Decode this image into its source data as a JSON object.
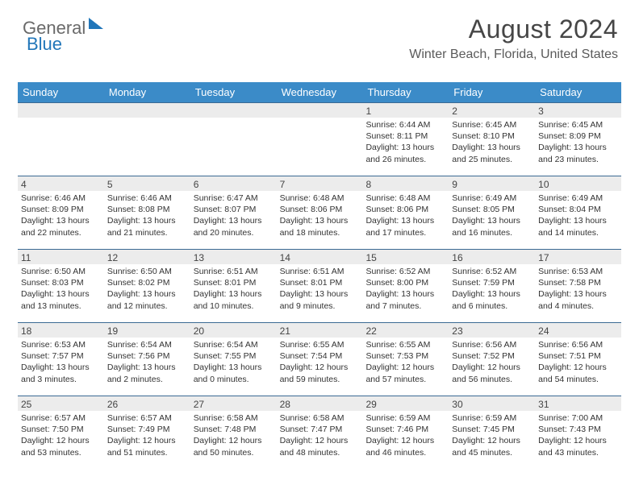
{
  "logo": {
    "part1": "General",
    "part2": "Blue"
  },
  "header": {
    "title": "August 2024",
    "location": "Winter Beach, Florida, United States"
  },
  "calendar": {
    "header_bg": "#3b8bc8",
    "header_fg": "#ffffff",
    "row_border": "#3b6a93",
    "daynum_bg": "#ececec",
    "text_color": "#333333",
    "font_size_body": 10.5,
    "font_size_daynum": 12,
    "days": [
      "Sunday",
      "Monday",
      "Tuesday",
      "Wednesday",
      "Thursday",
      "Friday",
      "Saturday"
    ],
    "weeks": [
      [
        {
          "empty": true
        },
        {
          "empty": true
        },
        {
          "empty": true
        },
        {
          "empty": true
        },
        {
          "n": "1",
          "sr": "Sunrise: 6:44 AM",
          "ss": "Sunset: 8:11 PM",
          "dl1": "Daylight: 13 hours",
          "dl2": "and 26 minutes."
        },
        {
          "n": "2",
          "sr": "Sunrise: 6:45 AM",
          "ss": "Sunset: 8:10 PM",
          "dl1": "Daylight: 13 hours",
          "dl2": "and 25 minutes."
        },
        {
          "n": "3",
          "sr": "Sunrise: 6:45 AM",
          "ss": "Sunset: 8:09 PM",
          "dl1": "Daylight: 13 hours",
          "dl2": "and 23 minutes."
        }
      ],
      [
        {
          "n": "4",
          "sr": "Sunrise: 6:46 AM",
          "ss": "Sunset: 8:09 PM",
          "dl1": "Daylight: 13 hours",
          "dl2": "and 22 minutes."
        },
        {
          "n": "5",
          "sr": "Sunrise: 6:46 AM",
          "ss": "Sunset: 8:08 PM",
          "dl1": "Daylight: 13 hours",
          "dl2": "and 21 minutes."
        },
        {
          "n": "6",
          "sr": "Sunrise: 6:47 AM",
          "ss": "Sunset: 8:07 PM",
          "dl1": "Daylight: 13 hours",
          "dl2": "and 20 minutes."
        },
        {
          "n": "7",
          "sr": "Sunrise: 6:48 AM",
          "ss": "Sunset: 8:06 PM",
          "dl1": "Daylight: 13 hours",
          "dl2": "and 18 minutes."
        },
        {
          "n": "8",
          "sr": "Sunrise: 6:48 AM",
          "ss": "Sunset: 8:06 PM",
          "dl1": "Daylight: 13 hours",
          "dl2": "and 17 minutes."
        },
        {
          "n": "9",
          "sr": "Sunrise: 6:49 AM",
          "ss": "Sunset: 8:05 PM",
          "dl1": "Daylight: 13 hours",
          "dl2": "and 16 minutes."
        },
        {
          "n": "10",
          "sr": "Sunrise: 6:49 AM",
          "ss": "Sunset: 8:04 PM",
          "dl1": "Daylight: 13 hours",
          "dl2": "and 14 minutes."
        }
      ],
      [
        {
          "n": "11",
          "sr": "Sunrise: 6:50 AM",
          "ss": "Sunset: 8:03 PM",
          "dl1": "Daylight: 13 hours",
          "dl2": "and 13 minutes."
        },
        {
          "n": "12",
          "sr": "Sunrise: 6:50 AM",
          "ss": "Sunset: 8:02 PM",
          "dl1": "Daylight: 13 hours",
          "dl2": "and 12 minutes."
        },
        {
          "n": "13",
          "sr": "Sunrise: 6:51 AM",
          "ss": "Sunset: 8:01 PM",
          "dl1": "Daylight: 13 hours",
          "dl2": "and 10 minutes."
        },
        {
          "n": "14",
          "sr": "Sunrise: 6:51 AM",
          "ss": "Sunset: 8:01 PM",
          "dl1": "Daylight: 13 hours",
          "dl2": "and 9 minutes."
        },
        {
          "n": "15",
          "sr": "Sunrise: 6:52 AM",
          "ss": "Sunset: 8:00 PM",
          "dl1": "Daylight: 13 hours",
          "dl2": "and 7 minutes."
        },
        {
          "n": "16",
          "sr": "Sunrise: 6:52 AM",
          "ss": "Sunset: 7:59 PM",
          "dl1": "Daylight: 13 hours",
          "dl2": "and 6 minutes."
        },
        {
          "n": "17",
          "sr": "Sunrise: 6:53 AM",
          "ss": "Sunset: 7:58 PM",
          "dl1": "Daylight: 13 hours",
          "dl2": "and 4 minutes."
        }
      ],
      [
        {
          "n": "18",
          "sr": "Sunrise: 6:53 AM",
          "ss": "Sunset: 7:57 PM",
          "dl1": "Daylight: 13 hours",
          "dl2": "and 3 minutes."
        },
        {
          "n": "19",
          "sr": "Sunrise: 6:54 AM",
          "ss": "Sunset: 7:56 PM",
          "dl1": "Daylight: 13 hours",
          "dl2": "and 2 minutes."
        },
        {
          "n": "20",
          "sr": "Sunrise: 6:54 AM",
          "ss": "Sunset: 7:55 PM",
          "dl1": "Daylight: 13 hours",
          "dl2": "and 0 minutes."
        },
        {
          "n": "21",
          "sr": "Sunrise: 6:55 AM",
          "ss": "Sunset: 7:54 PM",
          "dl1": "Daylight: 12 hours",
          "dl2": "and 59 minutes."
        },
        {
          "n": "22",
          "sr": "Sunrise: 6:55 AM",
          "ss": "Sunset: 7:53 PM",
          "dl1": "Daylight: 12 hours",
          "dl2": "and 57 minutes."
        },
        {
          "n": "23",
          "sr": "Sunrise: 6:56 AM",
          "ss": "Sunset: 7:52 PM",
          "dl1": "Daylight: 12 hours",
          "dl2": "and 56 minutes."
        },
        {
          "n": "24",
          "sr": "Sunrise: 6:56 AM",
          "ss": "Sunset: 7:51 PM",
          "dl1": "Daylight: 12 hours",
          "dl2": "and 54 minutes."
        }
      ],
      [
        {
          "n": "25",
          "sr": "Sunrise: 6:57 AM",
          "ss": "Sunset: 7:50 PM",
          "dl1": "Daylight: 12 hours",
          "dl2": "and 53 minutes."
        },
        {
          "n": "26",
          "sr": "Sunrise: 6:57 AM",
          "ss": "Sunset: 7:49 PM",
          "dl1": "Daylight: 12 hours",
          "dl2": "and 51 minutes."
        },
        {
          "n": "27",
          "sr": "Sunrise: 6:58 AM",
          "ss": "Sunset: 7:48 PM",
          "dl1": "Daylight: 12 hours",
          "dl2": "and 50 minutes."
        },
        {
          "n": "28",
          "sr": "Sunrise: 6:58 AM",
          "ss": "Sunset: 7:47 PM",
          "dl1": "Daylight: 12 hours",
          "dl2": "and 48 minutes."
        },
        {
          "n": "29",
          "sr": "Sunrise: 6:59 AM",
          "ss": "Sunset: 7:46 PM",
          "dl1": "Daylight: 12 hours",
          "dl2": "and 46 minutes."
        },
        {
          "n": "30",
          "sr": "Sunrise: 6:59 AM",
          "ss": "Sunset: 7:45 PM",
          "dl1": "Daylight: 12 hours",
          "dl2": "and 45 minutes."
        },
        {
          "n": "31",
          "sr": "Sunrise: 7:00 AM",
          "ss": "Sunset: 7:43 PM",
          "dl1": "Daylight: 12 hours",
          "dl2": "and 43 minutes."
        }
      ]
    ]
  }
}
